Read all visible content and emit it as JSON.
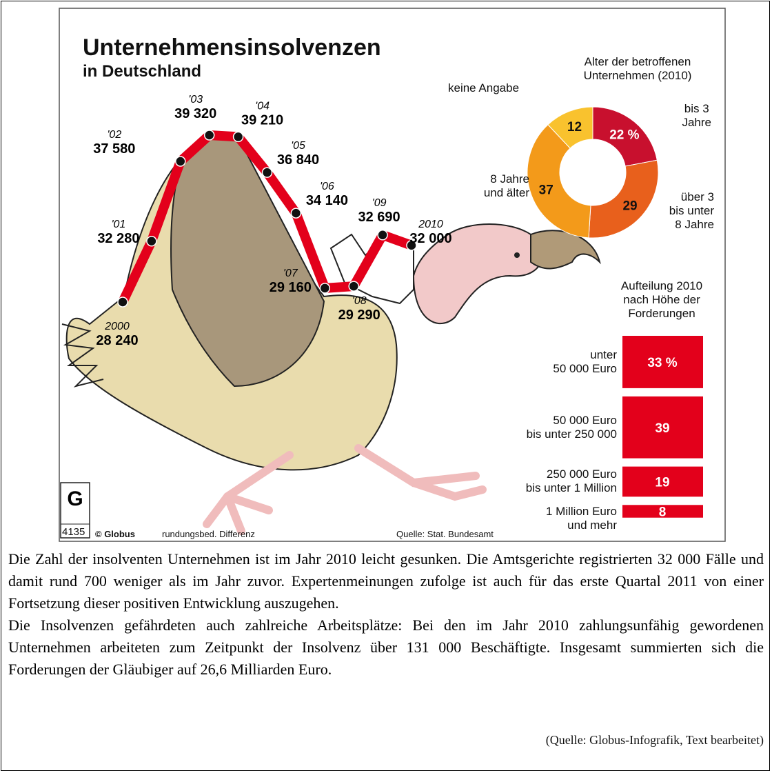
{
  "chart_data": [
    {
      "type": "line",
      "title": "Unternehmensinsolvenzen",
      "subtitle": "in Deutschland",
      "x": [
        "2000",
        "'01",
        "'02",
        "'03",
        "'04",
        "'05",
        "'06",
        "'07",
        "'08",
        "'09",
        "2010"
      ],
      "values": [
        28240,
        32280,
        37580,
        39320,
        39210,
        36840,
        34140,
        29160,
        29290,
        32690,
        32000
      ],
      "value_labels": [
        "28 240",
        "32 280",
        "37 580",
        "39 320",
        "39 210",
        "36 840",
        "34 140",
        "29 160",
        "29 290",
        "32 690",
        "32 000"
      ],
      "color": "#e3001b"
    },
    {
      "type": "donut",
      "title": "Alter der betroffenen\nUnternehmen (2010)",
      "categories": [
        "bis 3\nJahre",
        "über 3\nbis unter\n8 Jahre",
        "8 Jahre\nund älter",
        "keine Angabe"
      ],
      "values": [
        22,
        29,
        37,
        12
      ],
      "value_labels": [
        "22 %",
        "29",
        "37",
        "12"
      ],
      "colors": [
        "#c8102e",
        "#e8601c",
        "#f39a1a",
        "#f9c22e"
      ]
    },
    {
      "type": "stack",
      "title": "Aufteilung 2010\nnach Höhe der\nForderungen",
      "categories": [
        "unter\n50 000 Euro",
        "50 000 Euro\nbis unter 250 000",
        "250 000 Euro\nbis unter 1 Million",
        "1 Million Euro\nund mehr"
      ],
      "values": [
        33,
        39,
        19,
        8
      ],
      "value_labels": [
        "33 %",
        "39",
        "19",
        "8"
      ],
      "color": "#e3001b"
    }
  ],
  "footer": {
    "code": "4135",
    "credit": "© Globus",
    "note": "rundungsbed. Differenz",
    "source": "Quelle: Stat. Bundesamt"
  },
  "paragraphs": [
    "Die Zahl der insolventen Unternehmen ist im Jahr 2010 leicht gesunken. Die Amtsgerichte registrierten 32 000 Fälle und damit rund 700 weniger als im Jahr zuvor. Expertenmeinungen zufolge ist auch für das erste Quartal 2011 von einer Fortsetzung dieser positiven Entwicklung auszugehen.",
    "Die Insolvenzen gefährdeten auch zahlreiche Arbeitsplätze: Bei den im Jahr 2010 zahlungsunfähig gewordenen Unternehmen arbeiteten zum Zeitpunkt der Insolvenz über 131 000 Beschäftigte. Insgesamt summierten sich die Forderungen der Gläubiger auf 26,6 Milliarden Euro."
  ],
  "source_note": "(Quelle: Globus-Infografik, Text bearbeitet)"
}
